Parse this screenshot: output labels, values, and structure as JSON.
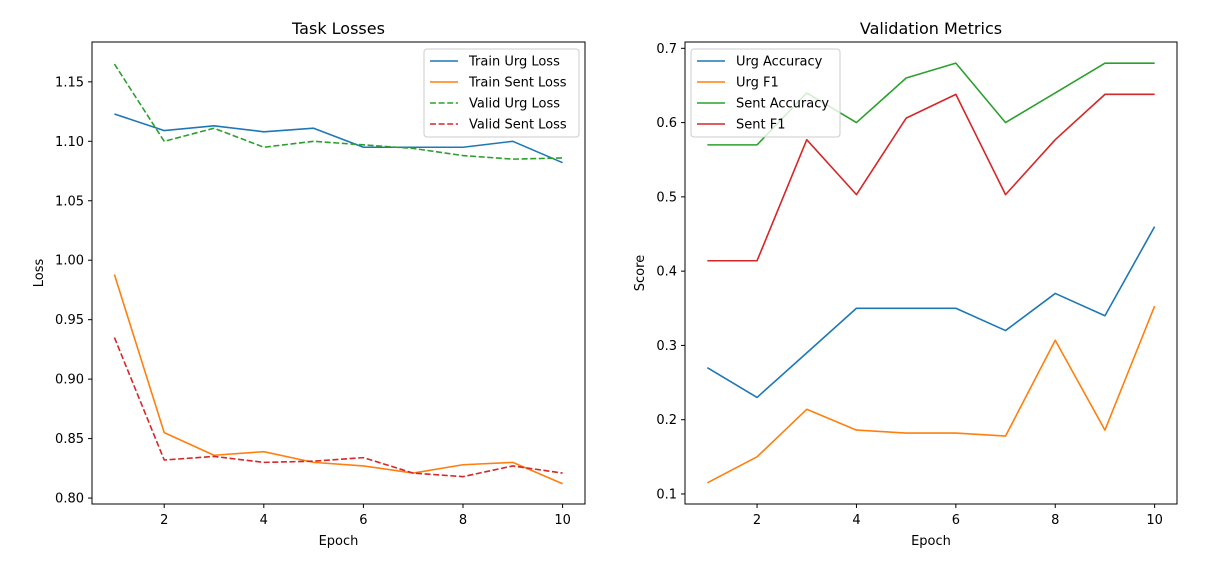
{
  "chart_data": [
    {
      "type": "line",
      "title": "Task Losses",
      "xlabel": "Epoch",
      "ylabel": "Loss",
      "x": [
        1,
        2,
        3,
        4,
        5,
        6,
        7,
        8,
        9,
        10
      ],
      "xlim": [
        0.55,
        10.45
      ],
      "ylim": [
        0.795,
        1.1835
      ],
      "xticks": [
        2,
        4,
        6,
        8,
        10
      ],
      "xtick_labels": [
        "2",
        "4",
        "6",
        "8",
        "10"
      ],
      "yticks": [
        0.8,
        0.85,
        0.9,
        0.95,
        1.0,
        1.05,
        1.1,
        1.15
      ],
      "ytick_labels": [
        "0.80",
        "0.85",
        "0.90",
        "0.95",
        "1.00",
        "1.05",
        "1.10",
        "1.15"
      ],
      "grid": false,
      "legend_position": "top-right",
      "series": [
        {
          "name": "Train Urg Loss",
          "color": "#1f77b4",
          "dash": "solid",
          "values": [
            1.123,
            1.109,
            1.113,
            1.108,
            1.111,
            1.095,
            1.095,
            1.095,
            1.1,
            1.082
          ]
        },
        {
          "name": "Train Sent Loss",
          "color": "#ff7f0e",
          "dash": "solid",
          "values": [
            0.988,
            0.855,
            0.836,
            0.839,
            0.83,
            0.827,
            0.821,
            0.828,
            0.83,
            0.812
          ]
        },
        {
          "name": "Valid Urg Loss",
          "color": "#2ca02c",
          "dash": "dashed",
          "values": [
            1.165,
            1.1,
            1.111,
            1.095,
            1.1,
            1.097,
            1.094,
            1.088,
            1.085,
            1.086
          ]
        },
        {
          "name": "Valid Sent Loss",
          "color": "#d62728",
          "dash": "dashed",
          "values": [
            0.935,
            0.832,
            0.835,
            0.83,
            0.831,
            0.834,
            0.821,
            0.818,
            0.827,
            0.821
          ]
        }
      ]
    },
    {
      "type": "line",
      "title": "Validation Metrics",
      "xlabel": "Epoch",
      "ylabel": "Score",
      "x": [
        1,
        2,
        3,
        4,
        5,
        6,
        7,
        8,
        9,
        10
      ],
      "xlim": [
        0.55,
        10.45
      ],
      "ylim": [
        0.0865,
        0.7085
      ],
      "xticks": [
        2,
        4,
        6,
        8,
        10
      ],
      "xtick_labels": [
        "2",
        "4",
        "6",
        "8",
        "10"
      ],
      "yticks": [
        0.1,
        0.2,
        0.3,
        0.4,
        0.5,
        0.6,
        0.7
      ],
      "ytick_labels": [
        "0.1",
        "0.2",
        "0.3",
        "0.4",
        "0.5",
        "0.6",
        "0.7"
      ],
      "grid": false,
      "legend_position": "top-left",
      "series": [
        {
          "name": "Urg Accuracy",
          "color": "#1f77b4",
          "dash": "solid",
          "values": [
            0.27,
            0.23,
            0.29,
            0.35,
            0.35,
            0.35,
            0.32,
            0.37,
            0.34,
            0.46
          ]
        },
        {
          "name": "Urg F1",
          "color": "#ff7f0e",
          "dash": "solid",
          "values": [
            0.115,
            0.15,
            0.214,
            0.186,
            0.182,
            0.182,
            0.178,
            0.307,
            0.186,
            0.353
          ]
        },
        {
          "name": "Sent Accuracy",
          "color": "#2ca02c",
          "dash": "solid",
          "values": [
            0.57,
            0.57,
            0.64,
            0.6,
            0.66,
            0.68,
            0.6,
            0.64,
            0.68,
            0.68
          ]
        },
        {
          "name": "Sent F1",
          "color": "#d62728",
          "dash": "solid",
          "values": [
            0.414,
            0.414,
            0.577,
            0.503,
            0.606,
            0.638,
            0.503,
            0.577,
            0.638,
            0.638
          ]
        }
      ]
    }
  ]
}
